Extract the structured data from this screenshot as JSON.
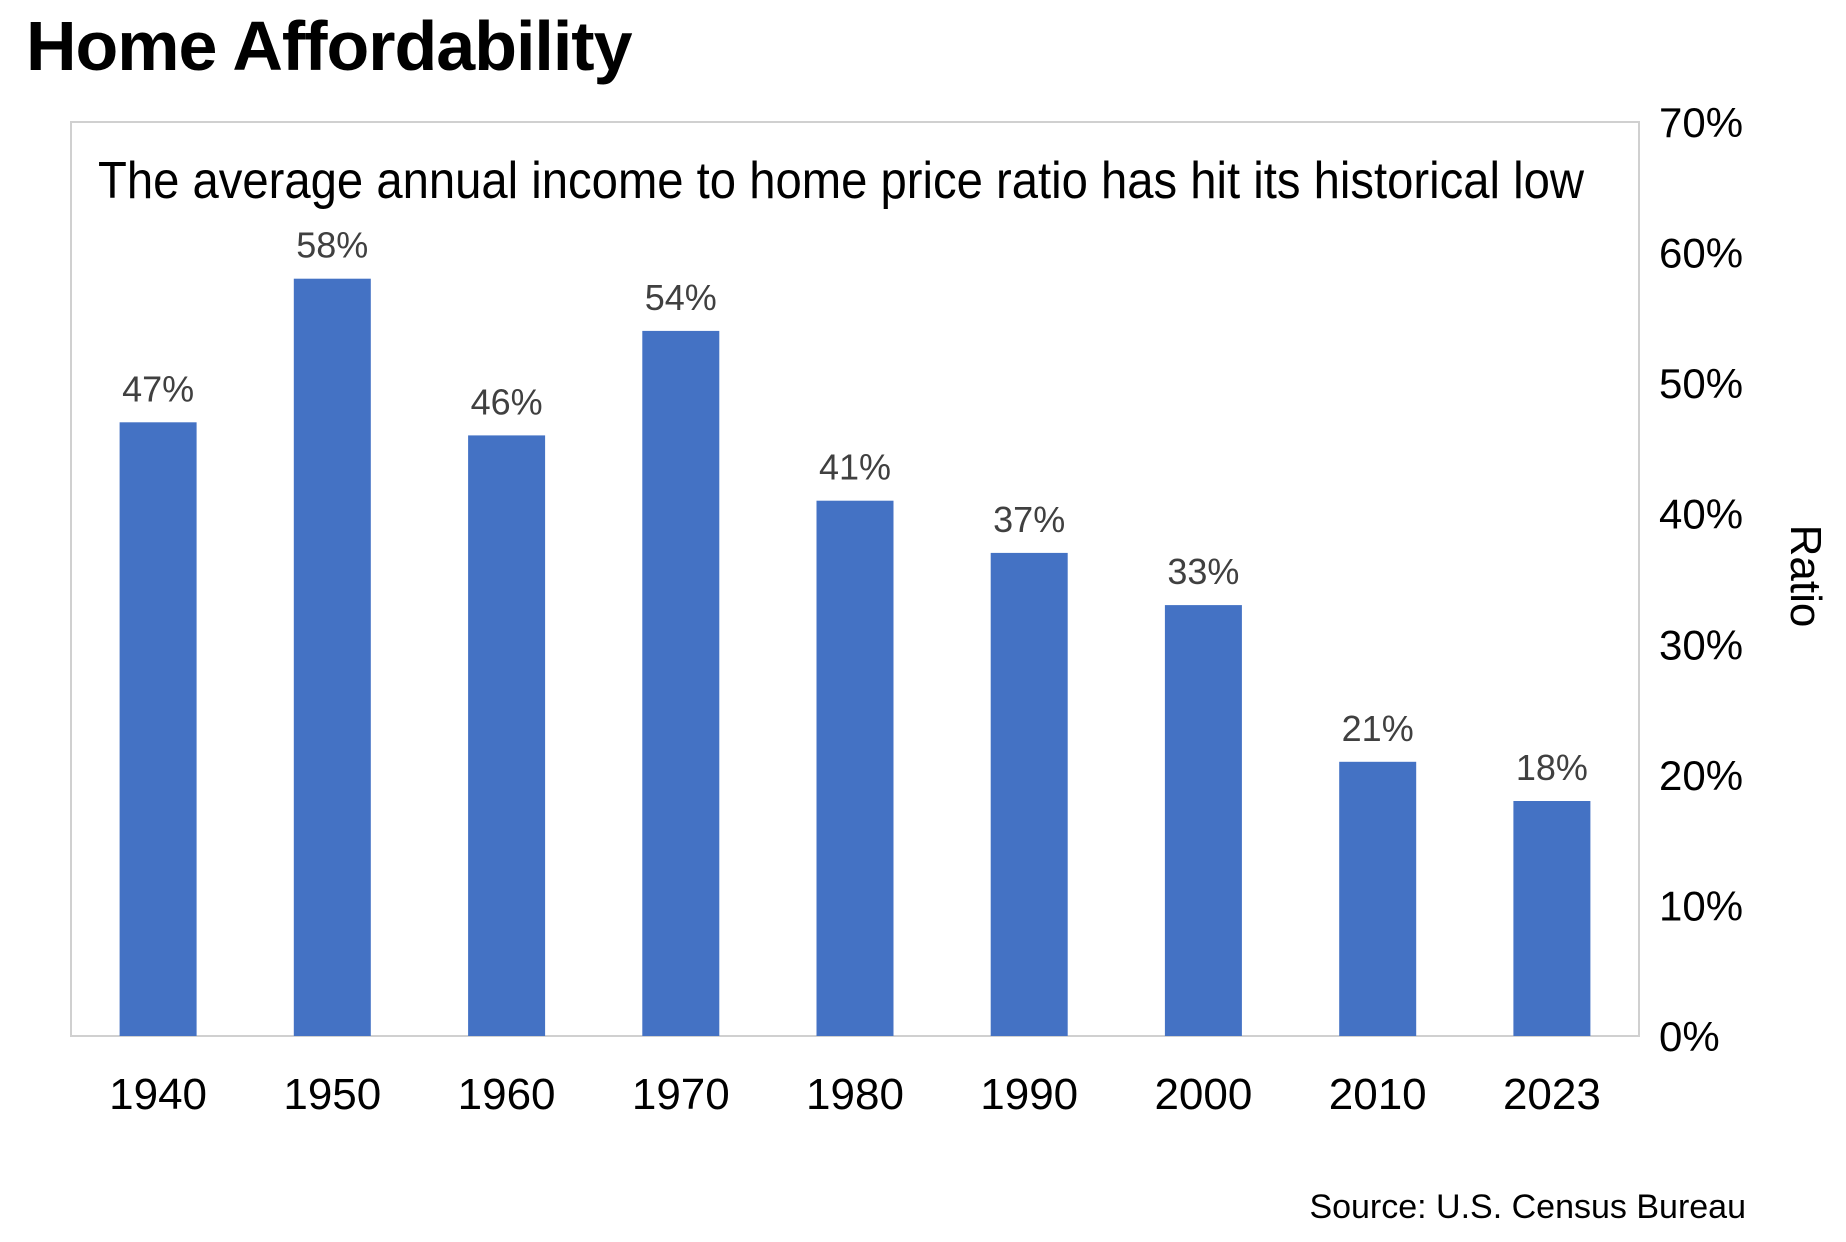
{
  "page": {
    "title": "Home Affordability",
    "source": "Source: U.S. Census Bureau"
  },
  "chart_data": {
    "type": "bar",
    "title": "The average annual income to home price ratio has hit its historical low",
    "categories": [
      "1940",
      "1950",
      "1960",
      "1970",
      "1980",
      "1990",
      "2000",
      "2010",
      "2023"
    ],
    "values": [
      47,
      58,
      46,
      54,
      41,
      37,
      33,
      21,
      18
    ],
    "data_labels": [
      "47%",
      "58%",
      "46%",
      "54%",
      "41%",
      "37%",
      "33%",
      "21%",
      "18%"
    ],
    "ylabel": "Ratio",
    "xlabel": "",
    "ylim": [
      0,
      70
    ],
    "yticks": [
      0,
      10,
      20,
      30,
      40,
      50,
      60,
      70
    ],
    "ytick_labels": [
      "0%",
      "10%",
      "20%",
      "30%",
      "40%",
      "50%",
      "60%",
      "70%"
    ],
    "y_axis_side": "right",
    "grid": false,
    "legend": "none",
    "bar_color": "#4472C4",
    "label_color": "#404040"
  }
}
